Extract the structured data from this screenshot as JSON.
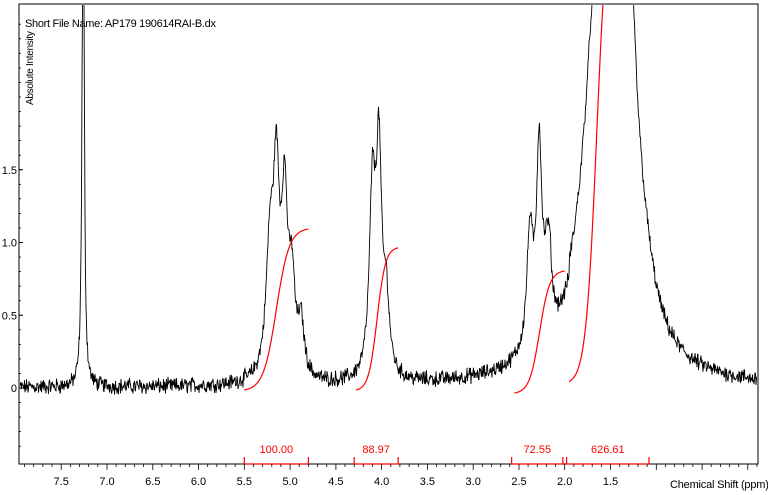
{
  "chart_data": {
    "type": "line",
    "title": "",
    "file_label": "Short File Name: AP179 190614RAI-B.dx",
    "ylabel": "Absolute Intensity",
    "xlabel": "Chemical Shift (ppm)",
    "xlim": [
      7.95,
      -0.1
    ],
    "ylim": [
      -1.0,
      2.6
    ],
    "x_reversed": true,
    "x_ticks": [
      "7.5",
      "7.0",
      "6.5",
      "6.0",
      "5.5",
      "5.0",
      "4.5",
      "4.0",
      "3.5",
      "3.0",
      "2.5",
      "2.0",
      "1.5"
    ],
    "y_ticks": [
      "0",
      "0.5",
      "1.0",
      "1.5"
    ],
    "grid": false,
    "colors": {
      "spectrum": "#000000",
      "integral": "#ff0000",
      "frame": "#000000"
    },
    "peaks": [
      {
        "x": 7.26,
        "height": 4.5,
        "width": 0.012
      },
      {
        "x": 5.22,
        "height": 0.85,
        "width": 0.05
      },
      {
        "x": 5.15,
        "height": 1.25,
        "width": 0.04
      },
      {
        "x": 5.06,
        "height": 1.15,
        "width": 0.04
      },
      {
        "x": 4.98,
        "height": 0.6,
        "width": 0.04
      },
      {
        "x": 4.88,
        "height": 0.35,
        "width": 0.04
      },
      {
        "x": 4.1,
        "height": 1.25,
        "width": 0.04
      },
      {
        "x": 4.03,
        "height": 1.45,
        "width": 0.035
      },
      {
        "x": 3.95,
        "height": 0.5,
        "width": 0.04
      },
      {
        "x": 2.38,
        "height": 0.8,
        "width": 0.04
      },
      {
        "x": 2.28,
        "height": 1.3,
        "width": 0.035
      },
      {
        "x": 2.18,
        "height": 0.6,
        "width": 0.05
      },
      {
        "x": 1.6,
        "height": 3.0,
        "width": 0.2
      },
      {
        "x": 1.35,
        "height": 3.5,
        "width": 0.1
      },
      {
        "x": 1.15,
        "height": 0.3,
        "width": 0.15
      }
    ],
    "integrals": [
      {
        "label": "100.00",
        "from": 5.5,
        "to": 4.8,
        "start_y": -0.02,
        "end_y": 1.1
      },
      {
        "label": "88.97",
        "from": 4.28,
        "to": 3.82,
        "start_y": -0.02,
        "end_y": 0.97
      },
      {
        "label": "72.55",
        "from": 2.55,
        "to": 2.0,
        "start_y": -0.04,
        "end_y": 0.81
      },
      {
        "label": "626.61",
        "from": 1.95,
        "to": 1.35,
        "start_y": 0.02,
        "end_y": 3.5
      }
    ],
    "integral_brackets": [
      {
        "label": "100.00",
        "from": 5.5,
        "to": 4.8
      },
      {
        "label": "88.97",
        "from": 4.3,
        "to": 3.82
      },
      {
        "label": "72.55",
        "from": 2.58,
        "to": 2.02
      },
      {
        "label": "626.61",
        "from": 1.98,
        "to": 1.08
      }
    ]
  }
}
